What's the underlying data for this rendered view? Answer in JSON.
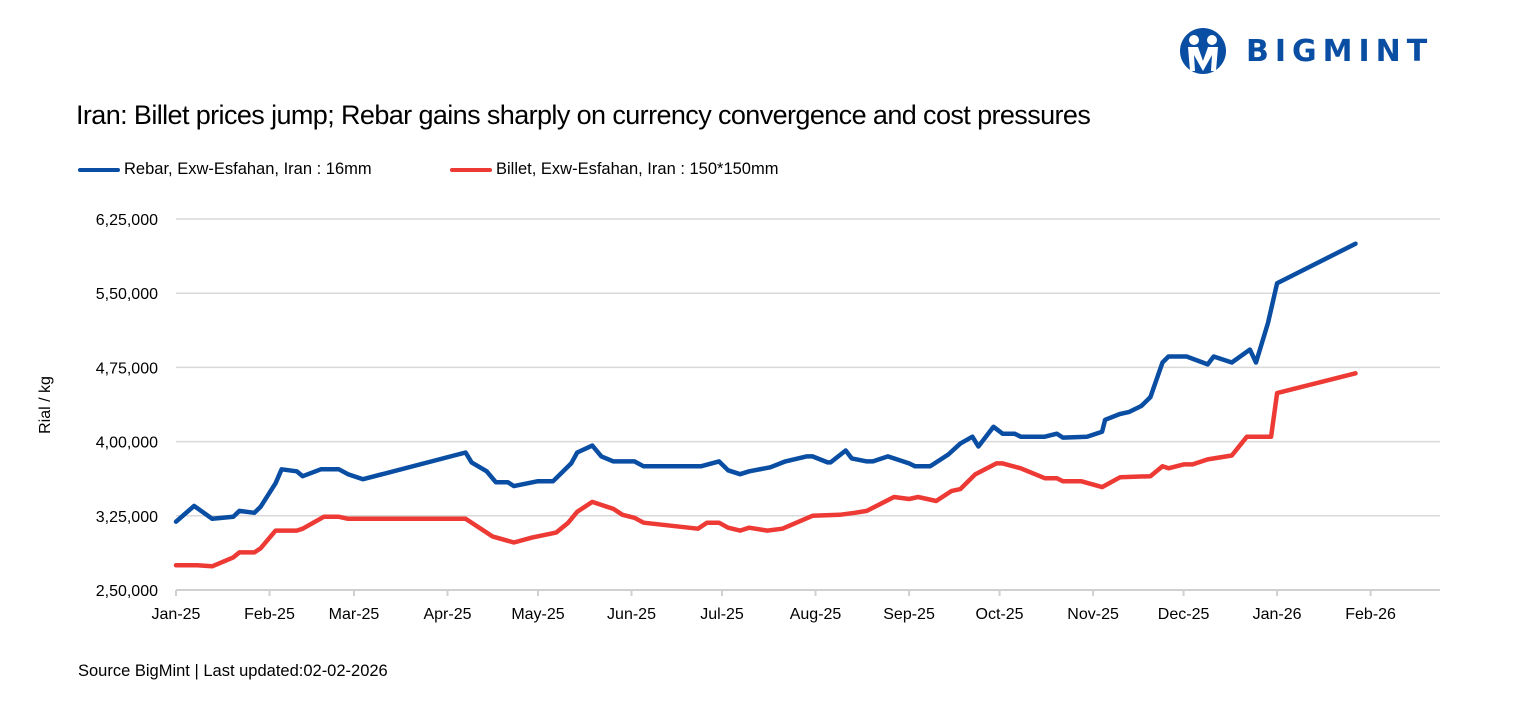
{
  "logo": {
    "text": "BIGMINT",
    "color": "#0a4ea3"
  },
  "chart_data": {
    "type": "line",
    "title": "Iran: Billet prices jump; Rebar gains sharply on currency convergence and cost pressures",
    "ylabel": "Rial / kg",
    "xlabel": "",
    "ylim": [
      250000,
      625000
    ],
    "xlim": [
      "2025-01-01",
      "2026-02-24"
    ],
    "grid": true,
    "legend_position": "top-left",
    "y_ticks": [
      {
        "value": 250000,
        "label": "2,50,000"
      },
      {
        "value": 325000,
        "label": "3,25,000"
      },
      {
        "value": 400000,
        "label": "4,00,000"
      },
      {
        "value": 475000,
        "label": "4,75,000"
      },
      {
        "value": 550000,
        "label": "5,50,000"
      },
      {
        "value": 625000,
        "label": "6,25,000"
      }
    ],
    "x_ticks": [
      {
        "date": "2025-01-01",
        "label": "Jan-25"
      },
      {
        "date": "2025-02-01",
        "label": "Feb-25"
      },
      {
        "date": "2025-03-01",
        "label": "Mar-25"
      },
      {
        "date": "2025-04-01",
        "label": "Apr-25"
      },
      {
        "date": "2025-05-01",
        "label": "May-25"
      },
      {
        "date": "2025-06-01",
        "label": "Jun-25"
      },
      {
        "date": "2025-07-01",
        "label": "Jul-25"
      },
      {
        "date": "2025-08-01",
        "label": "Aug-25"
      },
      {
        "date": "2025-09-01",
        "label": "Sep-25"
      },
      {
        "date": "2025-10-01",
        "label": "Oct-25"
      },
      {
        "date": "2025-11-01",
        "label": "Nov-25"
      },
      {
        "date": "2025-12-01",
        "label": "Dec-25"
      },
      {
        "date": "2026-01-01",
        "label": "Jan-26"
      },
      {
        "date": "2026-02-01",
        "label": "Feb-26"
      }
    ],
    "series": [
      {
        "name": "Rebar, Exw-Esfahan, Iran : 16mm",
        "color": "#0a4ea3",
        "points": [
          [
            "2025-01-01",
            319000
          ],
          [
            "2025-01-07",
            335000
          ],
          [
            "2025-01-13",
            322000
          ],
          [
            "2025-01-20",
            324000
          ],
          [
            "2025-01-22",
            330000
          ],
          [
            "2025-01-27",
            328000
          ],
          [
            "2025-01-29",
            334000
          ],
          [
            "2025-02-03",
            358000
          ],
          [
            "2025-02-05",
            372000
          ],
          [
            "2025-02-10",
            370000
          ],
          [
            "2025-02-12",
            365000
          ],
          [
            "2025-02-18",
            372000
          ],
          [
            "2025-02-24",
            372000
          ],
          [
            "2025-02-27",
            367000
          ],
          [
            "2025-03-04",
            362000
          ],
          [
            "2025-04-07",
            389000
          ],
          [
            "2025-04-09",
            379000
          ],
          [
            "2025-04-14",
            370000
          ],
          [
            "2025-04-17",
            359000
          ],
          [
            "2025-04-21",
            359000
          ],
          [
            "2025-04-23",
            355000
          ],
          [
            "2025-05-01",
            360000
          ],
          [
            "2025-05-06",
            360000
          ],
          [
            "2025-05-12",
            378000
          ],
          [
            "2025-05-14",
            389000
          ],
          [
            "2025-05-19",
            396000
          ],
          [
            "2025-05-22",
            385000
          ],
          [
            "2025-05-26",
            380000
          ],
          [
            "2025-06-02",
            380000
          ],
          [
            "2025-06-05",
            375000
          ],
          [
            "2025-06-24",
            375000
          ],
          [
            "2025-06-30",
            380000
          ],
          [
            "2025-07-03",
            371000
          ],
          [
            "2025-07-07",
            367000
          ],
          [
            "2025-07-10",
            370000
          ],
          [
            "2025-07-17",
            374000
          ],
          [
            "2025-07-22",
            380000
          ],
          [
            "2025-07-29",
            385000
          ],
          [
            "2025-07-31",
            385000
          ],
          [
            "2025-08-05",
            379000
          ],
          [
            "2025-08-06",
            379000
          ],
          [
            "2025-08-11",
            391000
          ],
          [
            "2025-08-13",
            383000
          ],
          [
            "2025-08-18",
            380000
          ],
          [
            "2025-08-20",
            380000
          ],
          [
            "2025-08-25",
            385000
          ],
          [
            "2025-09-01",
            378000
          ],
          [
            "2025-09-03",
            375000
          ],
          [
            "2025-09-08",
            375000
          ],
          [
            "2025-09-14",
            387000
          ],
          [
            "2025-09-18",
            398000
          ],
          [
            "2025-09-22",
            405000
          ],
          [
            "2025-09-24",
            395000
          ],
          [
            "2025-09-29",
            415000
          ],
          [
            "2025-10-02",
            408000
          ],
          [
            "2025-10-06",
            408000
          ],
          [
            "2025-10-08",
            405000
          ],
          [
            "2025-10-16",
            405000
          ],
          [
            "2025-10-20",
            408000
          ],
          [
            "2025-10-22",
            404000
          ],
          [
            "2025-10-30",
            405000
          ],
          [
            "2025-11-04",
            410000
          ],
          [
            "2025-11-05",
            422000
          ],
          [
            "2025-11-10",
            428000
          ],
          [
            "2025-11-13",
            430000
          ],
          [
            "2025-11-17",
            436000
          ],
          [
            "2025-11-20",
            445000
          ],
          [
            "2025-11-24",
            480000
          ],
          [
            "2025-11-26",
            486000
          ],
          [
            "2025-12-02",
            486000
          ],
          [
            "2025-12-09",
            478000
          ],
          [
            "2025-12-11",
            486000
          ],
          [
            "2025-12-17",
            480000
          ],
          [
            "2025-12-23",
            493000
          ],
          [
            "2025-12-25",
            480000
          ],
          [
            "2025-12-29",
            520000
          ],
          [
            "2026-01-01",
            560000
          ],
          [
            "2026-01-27",
            600000
          ]
        ]
      },
      {
        "name": "Billet, Exw-Esfahan, Iran : 150*150mm",
        "color": "#ee3a35",
        "points": [
          [
            "2025-01-01",
            275000
          ],
          [
            "2025-01-08",
            275000
          ],
          [
            "2025-01-13",
            274000
          ],
          [
            "2025-01-20",
            283000
          ],
          [
            "2025-01-22",
            288000
          ],
          [
            "2025-01-27",
            288000
          ],
          [
            "2025-01-29",
            292000
          ],
          [
            "2025-02-03",
            310000
          ],
          [
            "2025-02-10",
            310000
          ],
          [
            "2025-02-12",
            312000
          ],
          [
            "2025-02-19",
            324000
          ],
          [
            "2025-02-24",
            324000
          ],
          [
            "2025-02-27",
            322000
          ],
          [
            "2025-04-07",
            322000
          ],
          [
            "2025-04-16",
            304000
          ],
          [
            "2025-04-23",
            298000
          ],
          [
            "2025-04-29",
            303000
          ],
          [
            "2025-05-07",
            308000
          ],
          [
            "2025-05-11",
            318000
          ],
          [
            "2025-05-14",
            329000
          ],
          [
            "2025-05-19",
            339000
          ],
          [
            "2025-05-26",
            332000
          ],
          [
            "2025-05-29",
            326000
          ],
          [
            "2025-06-02",
            323000
          ],
          [
            "2025-06-05",
            318000
          ],
          [
            "2025-06-14",
            315000
          ],
          [
            "2025-06-23",
            312000
          ],
          [
            "2025-06-26",
            318000
          ],
          [
            "2025-06-30",
            318000
          ],
          [
            "2025-07-03",
            313000
          ],
          [
            "2025-07-07",
            310000
          ],
          [
            "2025-07-10",
            313000
          ],
          [
            "2025-07-16",
            310000
          ],
          [
            "2025-07-21",
            312000
          ],
          [
            "2025-07-31",
            325000
          ],
          [
            "2025-08-09",
            326000
          ],
          [
            "2025-08-14",
            328000
          ],
          [
            "2025-08-18",
            330000
          ],
          [
            "2025-08-27",
            344000
          ],
          [
            "2025-09-01",
            342000
          ],
          [
            "2025-09-04",
            344000
          ],
          [
            "2025-09-10",
            340000
          ],
          [
            "2025-09-15",
            350000
          ],
          [
            "2025-09-18",
            352000
          ],
          [
            "2025-09-23",
            367000
          ],
          [
            "2025-09-30",
            378000
          ],
          [
            "2025-10-02",
            378000
          ],
          [
            "2025-10-08",
            373000
          ],
          [
            "2025-10-16",
            363000
          ],
          [
            "2025-10-20",
            363000
          ],
          [
            "2025-10-22",
            360000
          ],
          [
            "2025-10-28",
            360000
          ],
          [
            "2025-11-04",
            354000
          ],
          [
            "2025-11-10",
            364000
          ],
          [
            "2025-11-20",
            365000
          ],
          [
            "2025-11-24",
            375000
          ],
          [
            "2025-11-26",
            373000
          ],
          [
            "2025-12-01",
            377000
          ],
          [
            "2025-12-04",
            377000
          ],
          [
            "2025-12-09",
            382000
          ],
          [
            "2025-12-17",
            386000
          ],
          [
            "2025-12-22",
            405000
          ],
          [
            "2025-12-30",
            405000
          ],
          [
            "2026-01-01",
            449000
          ],
          [
            "2026-01-27",
            469000
          ]
        ]
      }
    ]
  },
  "source": "Source BigMint | Last updated:02-02-2026"
}
